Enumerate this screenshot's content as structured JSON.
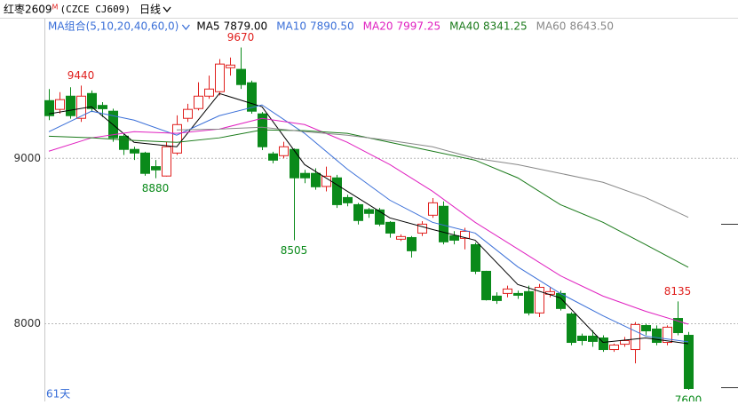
{
  "chart_data": {
    "type": "candlestick",
    "title": "红枣2609",
    "title_mark": "M",
    "subtitle": "(CZCE CJ609)",
    "period": "日线",
    "indicator": "MA组合(5,10,20,40,60,0)",
    "bar_count_label": "61天",
    "ylim": [
      7530,
      9850
    ],
    "yticks": [
      8000,
      9000
    ],
    "grid": true,
    "up_color": "#e0201e",
    "down_color": "#0a8a1a",
    "open": [
      9349,
      9296,
      9376,
      9242,
      9392,
      9320,
      9285,
      9134,
      9054,
      9032,
      8950,
      8893,
      9032,
      9242,
      9301,
      9376,
      9403,
      9548,
      9538,
      9457,
      9269,
      9027,
      9016,
      9054,
      8909,
      8909,
      8830,
      8882,
      8763,
      8720,
      8690,
      8688,
      8613,
      8511,
      8521,
      8548,
      8656,
      8710,
      8532,
      8516,
      8478,
      8317,
      8167,
      8183,
      8183,
      8194,
      8065,
      8178,
      8183,
      8059,
      7925,
      7925,
      7914,
      7844,
      7876,
      7844,
      7989,
      7968,
      7887,
      8032,
      7930
    ],
    "high": [
      9419,
      9400,
      9430,
      9440,
      9410,
      9340,
      9300,
      9150,
      9070,
      9040,
      8990,
      9100,
      9260,
      9330,
      9460,
      9500,
      9600,
      9610,
      9670,
      9470,
      9280,
      9040,
      9100,
      9060,
      8930,
      8940,
      8950,
      8900,
      8780,
      8730,
      8700,
      8700,
      8620,
      8540,
      8530,
      8620,
      8760,
      8740,
      8560,
      8580,
      8490,
      8320,
      8190,
      8230,
      8200,
      8230,
      8240,
      8220,
      8200,
      8070,
      7940,
      7960,
      7930,
      7880,
      7920,
      8010,
      8000,
      7990,
      7990,
      8135,
      7950
    ],
    "low": [
      9231,
      9270,
      9240,
      9220,
      9280,
      9250,
      9100,
      9020,
      8990,
      8895,
      8880,
      8890,
      9020,
      9220,
      9290,
      9360,
      9380,
      9500,
      9420,
      9270,
      9050,
      8970,
      9000,
      8505,
      8850,
      8810,
      8800,
      8700,
      8710,
      8600,
      8640,
      8590,
      8520,
      8500,
      8400,
      8530,
      8640,
      8480,
      8480,
      8450,
      8300,
      8140,
      8120,
      8160,
      8150,
      8050,
      8040,
      8160,
      8080,
      7870,
      7870,
      7860,
      7830,
      7830,
      7860,
      7760,
      7930,
      7870,
      7870,
      7930,
      7600
    ],
    "close": [
      9258,
      9355,
      9258,
      9376,
      9301,
      9300,
      9124,
      9054,
      9032,
      8909,
      8930,
      9070,
      9204,
      9296,
      9376,
      9419,
      9570,
      9564,
      9446,
      9285,
      9070,
      8989,
      9070,
      8882,
      8882,
      8828,
      8892,
      8720,
      8731,
      8624,
      8667,
      8602,
      8548,
      8527,
      8441,
      8602,
      8731,
      8495,
      8505,
      8559,
      8317,
      8145,
      8140,
      8210,
      8172,
      8065,
      8220,
      8194,
      8092,
      7887,
      7898,
      7893,
      7844,
      7871,
      7898,
      7995,
      7957,
      7887,
      7979,
      7946,
      7608
    ],
    "annotations": [
      9440,
      9670,
      8880,
      8505,
      8135,
      7600
    ],
    "series": [
      {
        "name": "MA5",
        "color": "#000000",
        "legend_value": {
          "value": 7879,
          "label": "7879.00"
        },
        "x": [
          0,
          4,
          8,
          12,
          16,
          20,
          24,
          28,
          32,
          36,
          40,
          44,
          48,
          52,
          56,
          60
        ],
        "values": [
          9269,
          9312,
          9097,
          9070,
          9392,
          9312,
          8962,
          8801,
          8640,
          8570,
          8505,
          8237,
          8156,
          7887,
          7914,
          7879
        ]
      },
      {
        "name": "MA10",
        "color": "#3a6fd8",
        "legend_value": {
          "value": 7890.5,
          "label": "7890.50"
        },
        "x": [
          0,
          4,
          8,
          12,
          16,
          20,
          24,
          28,
          32,
          36,
          40,
          44,
          48,
          52,
          56,
          60
        ],
        "values": [
          9161,
          9285,
          9231,
          9140,
          9258,
          9323,
          9151,
          8935,
          8747,
          8613,
          8548,
          8344,
          8183,
          8048,
          7925,
          7890.5
        ]
      },
      {
        "name": "MA20",
        "color": "#e020c0",
        "legend_value": {
          "value": 7997.25,
          "label": "7997.25"
        },
        "x": [
          0,
          4,
          8,
          12,
          16,
          20,
          24,
          28,
          32,
          36,
          40,
          44,
          48,
          52,
          56,
          60
        ],
        "values": [
          9043,
          9124,
          9161,
          9151,
          9177,
          9242,
          9204,
          9097,
          8962,
          8801,
          8613,
          8452,
          8290,
          8167,
          8075,
          7997.25
        ]
      },
      {
        "name": "MA40",
        "color": "#1a7a1a",
        "legend_value": {
          "value": 8341.25,
          "label": "8341.25"
        },
        "x": [
          0,
          4,
          8,
          12,
          16,
          20,
          24,
          28,
          32,
          36,
          40,
          44,
          48,
          52,
          56,
          60
        ],
        "values": [
          9134,
          9124,
          9108,
          9097,
          9124,
          9172,
          9167,
          9151,
          9097,
          9043,
          8989,
          8882,
          8720,
          8613,
          8478,
          8341.25
        ]
      },
      {
        "name": "MA60",
        "color": "#888888",
        "legend_value": {
          "value": 8643.5,
          "label": "8643.50"
        },
        "x": [
          12,
          16,
          20,
          24,
          28,
          32,
          36,
          40,
          44,
          48,
          52,
          56,
          60
        ],
        "values": [
          9172,
          9177,
          9188,
          9161,
          9140,
          9108,
          9070,
          9000,
          8962,
          8909,
          8855,
          8763,
          8643.5
        ]
      }
    ]
  }
}
